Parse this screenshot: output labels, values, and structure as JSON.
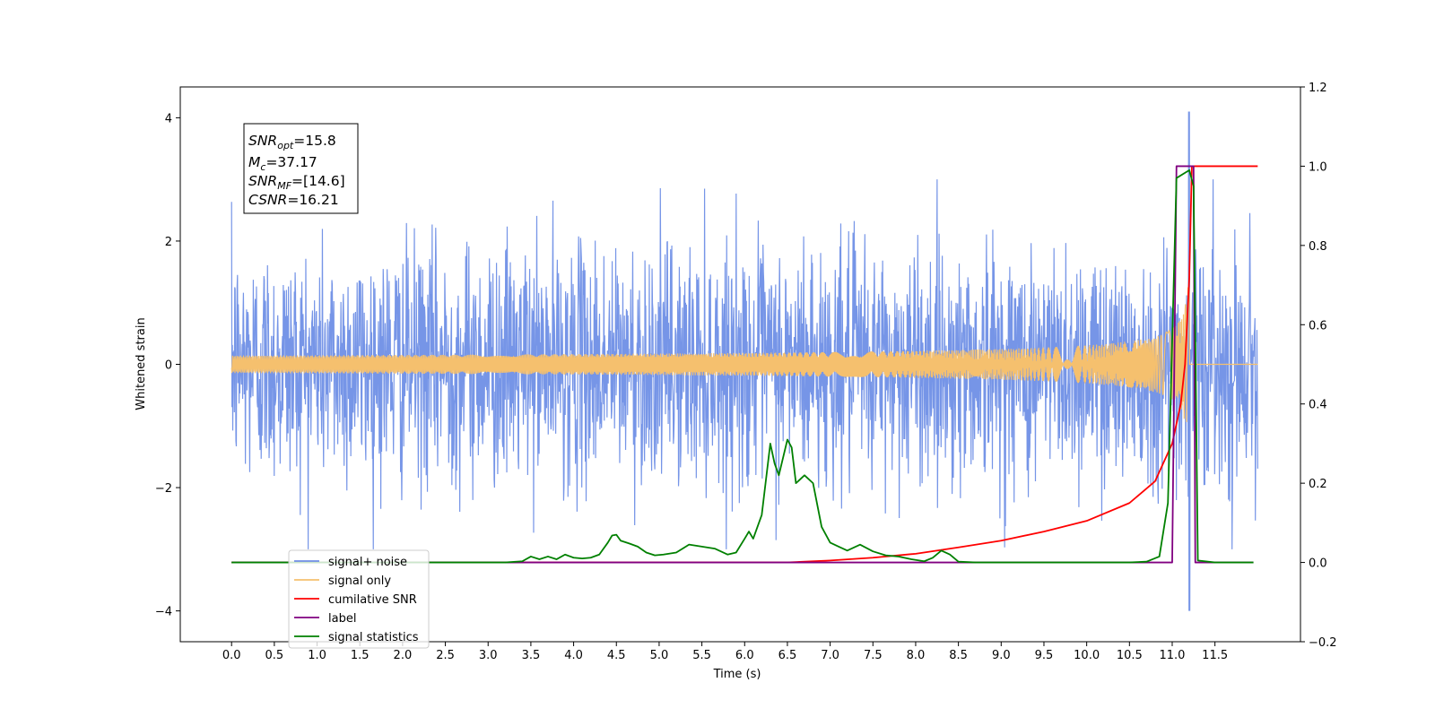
{
  "chart_data": {
    "type": "line",
    "xlabel": "Time (s)",
    "ylabel": "Whitened strain",
    "xlim": [
      -0.6,
      12.5
    ],
    "ylim": [
      -4.5,
      4.5
    ],
    "y2lim": [
      -0.2,
      1.2
    ],
    "x_ticks": [
      "0.0",
      "0.5",
      "1.0",
      "1.5",
      "2.0",
      "2.5",
      "3.0",
      "3.5",
      "4.0",
      "4.5",
      "5.0",
      "5.5",
      "6.0",
      "6.5",
      "7.0",
      "7.5",
      "8.0",
      "8.5",
      "9.0",
      "9.5",
      "10.0",
      "10.5",
      "11.0",
      "11.5"
    ],
    "y_ticks": [
      "4",
      "2",
      "0",
      "−2",
      "−4"
    ],
    "y2_ticks": [
      "1.2",
      "1.0",
      "0.8",
      "0.6",
      "0.4",
      "0.2",
      "0.0",
      "−0.2"
    ],
    "legend_position": "lower left",
    "annotation": {
      "snr_opt": {
        "name": "SNR",
        "sub": "opt",
        "value": "=15.8"
      },
      "mc": {
        "name": "M",
        "sub": "c",
        "value": "=37.17"
      },
      "snr_mf": {
        "name": "SNR",
        "sub": "MF",
        "value": "=[14.6]"
      },
      "csnr": {
        "name": "CSNR",
        "value": "=16.21"
      }
    },
    "series": [
      {
        "name": "signal+ noise",
        "color": "#6f8fe6",
        "axis": "left",
        "x_range": [
          0.0,
          12.0
        ],
        "amplitude_std": 0.95,
        "max": 4.1,
        "min": -4.0
      },
      {
        "name": "signal only",
        "color": "#f5c06e",
        "axis": "left",
        "x_range": [
          0.0,
          12.0
        ],
        "peak_time": 11.2,
        "peak_amplitude": 1.3
      },
      {
        "name": "cumilative SNR",
        "color": "#ff0000",
        "axis": "right",
        "points": [
          [
            0.0,
            0.0
          ],
          [
            6.5,
            0.0
          ],
          [
            7.0,
            0.005
          ],
          [
            7.5,
            0.012
          ],
          [
            8.0,
            0.022
          ],
          [
            8.5,
            0.038
          ],
          [
            9.0,
            0.055
          ],
          [
            9.5,
            0.078
          ],
          [
            10.0,
            0.105
          ],
          [
            10.5,
            0.15
          ],
          [
            10.8,
            0.205
          ],
          [
            11.0,
            0.3
          ],
          [
            11.1,
            0.4
          ],
          [
            11.15,
            0.5
          ],
          [
            11.2,
            0.72
          ],
          [
            11.23,
            1.0
          ],
          [
            12.0,
            1.0
          ]
        ]
      },
      {
        "name": "label",
        "color": "#800080",
        "axis": "right",
        "points": [
          [
            0.0,
            0.0
          ],
          [
            11.0,
            0.0
          ],
          [
            11.05,
            1.0
          ],
          [
            11.25,
            1.0
          ],
          [
            11.27,
            0.0
          ],
          [
            11.95,
            0.0
          ]
        ]
      },
      {
        "name": "signal statistics",
        "color": "#008000",
        "axis": "right",
        "points": [
          [
            0.0,
            0.0
          ],
          [
            3.2,
            0.0
          ],
          [
            3.4,
            0.003
          ],
          [
            3.5,
            0.015
          ],
          [
            3.6,
            0.008
          ],
          [
            3.7,
            0.015
          ],
          [
            3.8,
            0.008
          ],
          [
            3.9,
            0.02
          ],
          [
            4.0,
            0.012
          ],
          [
            4.1,
            0.01
          ],
          [
            4.2,
            0.012
          ],
          [
            4.3,
            0.02
          ],
          [
            4.4,
            0.05
          ],
          [
            4.45,
            0.068
          ],
          [
            4.5,
            0.07
          ],
          [
            4.55,
            0.055
          ],
          [
            4.65,
            0.048
          ],
          [
            4.75,
            0.04
          ],
          [
            4.85,
            0.025
          ],
          [
            4.95,
            0.018
          ],
          [
            5.05,
            0.02
          ],
          [
            5.2,
            0.025
          ],
          [
            5.35,
            0.045
          ],
          [
            5.5,
            0.04
          ],
          [
            5.65,
            0.035
          ],
          [
            5.8,
            0.02
          ],
          [
            5.9,
            0.025
          ],
          [
            6.0,
            0.06
          ],
          [
            6.05,
            0.078
          ],
          [
            6.1,
            0.06
          ],
          [
            6.2,
            0.12
          ],
          [
            6.3,
            0.3
          ],
          [
            6.35,
            0.25
          ],
          [
            6.4,
            0.22
          ],
          [
            6.5,
            0.31
          ],
          [
            6.55,
            0.29
          ],
          [
            6.6,
            0.2
          ],
          [
            6.7,
            0.22
          ],
          [
            6.8,
            0.2
          ],
          [
            6.9,
            0.09
          ],
          [
            7.0,
            0.05
          ],
          [
            7.1,
            0.04
          ],
          [
            7.2,
            0.03
          ],
          [
            7.35,
            0.045
          ],
          [
            7.5,
            0.028
          ],
          [
            7.65,
            0.018
          ],
          [
            7.8,
            0.015
          ],
          [
            7.95,
            0.008
          ],
          [
            8.1,
            0.003
          ],
          [
            8.2,
            0.012
          ],
          [
            8.3,
            0.03
          ],
          [
            8.4,
            0.02
          ],
          [
            8.5,
            0.002
          ],
          [
            8.7,
            0.0
          ],
          [
            10.5,
            0.0
          ],
          [
            10.7,
            0.002
          ],
          [
            10.85,
            0.015
          ],
          [
            10.95,
            0.15
          ],
          [
            11.05,
            0.97
          ],
          [
            11.2,
            0.99
          ],
          [
            11.25,
            0.95
          ],
          [
            11.3,
            0.005
          ],
          [
            11.5,
            0.0
          ],
          [
            11.95,
            0.0
          ]
        ]
      }
    ]
  }
}
